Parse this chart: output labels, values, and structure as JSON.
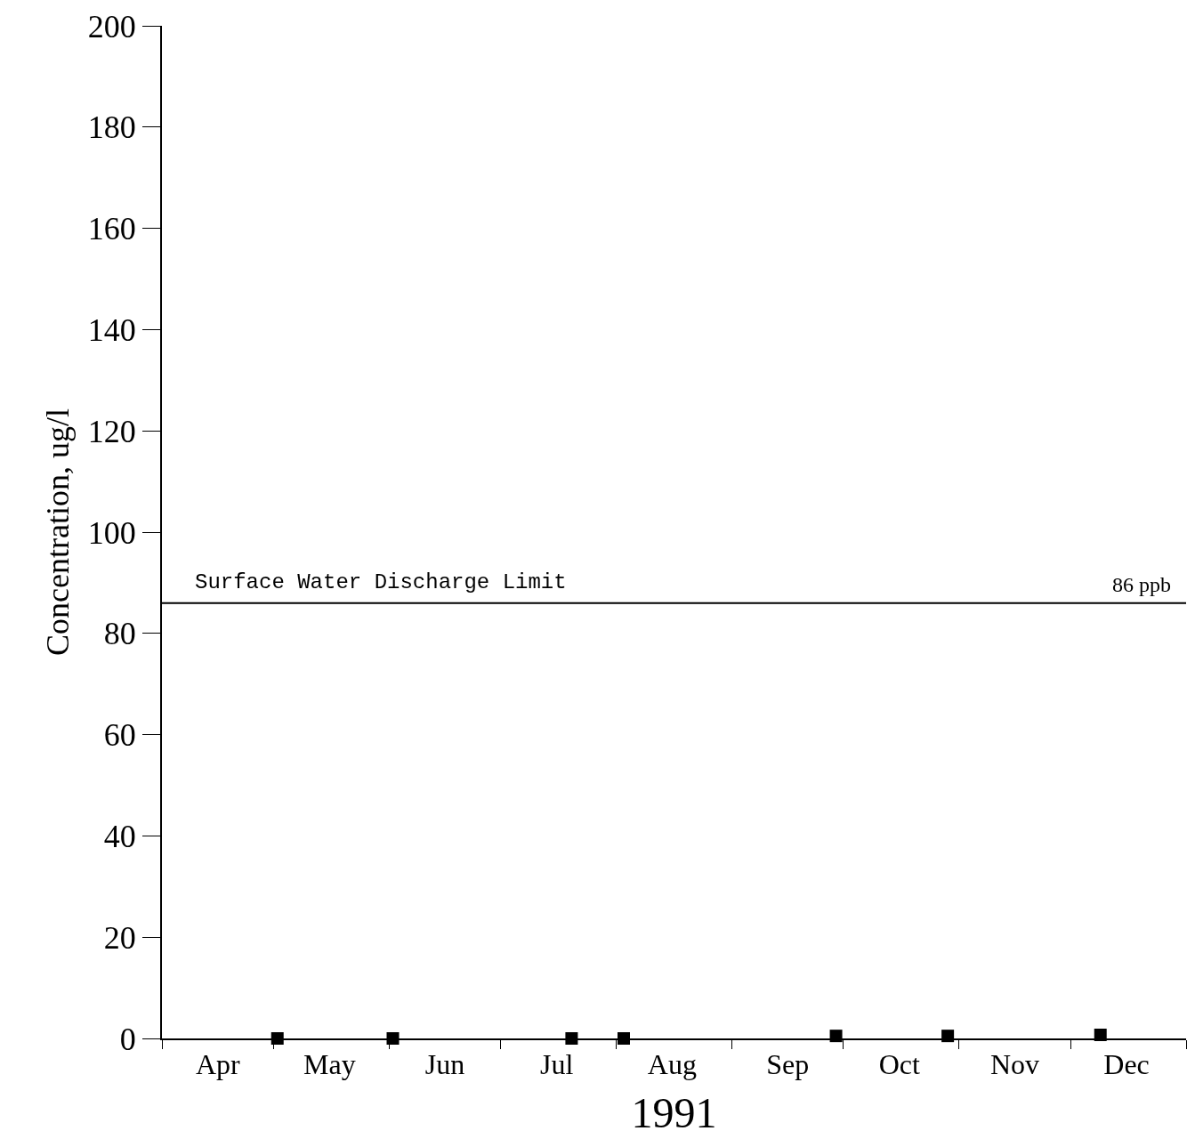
{
  "chart_data": {
    "type": "scatter",
    "xlabel": "1991",
    "ylabel": "Concentration, ug/l",
    "x": [
      "1991-05-02",
      "1991-06-02",
      "1991-07-20",
      "1991-08-03",
      "1991-09-29",
      "1991-10-29",
      "1991-12-09"
    ],
    "series": [
      {
        "color": "#000000",
        "values": [
          0,
          0,
          0,
          0,
          0.5,
          0.5,
          0.7
        ]
      }
    ],
    "marker": "square",
    "xlim": [
      "1991-04-01",
      "1992-01-01"
    ],
    "xticks": [
      {
        "value": "1991-04-01",
        "label": null
      },
      {
        "value": "1991-05-01",
        "label": null
      },
      {
        "value": "1991-06-01",
        "label": null
      },
      {
        "value": "1991-07-01",
        "label": null
      },
      {
        "value": "1991-08-01",
        "label": null
      },
      {
        "value": "1991-09-01",
        "label": null
      },
      {
        "value": "1991-10-01",
        "label": null
      },
      {
        "value": "1991-11-01",
        "label": null
      },
      {
        "value": "1991-12-01",
        "label": null
      },
      {
        "value": "1992-01-01",
        "label": null
      },
      {
        "value": "1991-04-16",
        "label": "Apr"
      },
      {
        "value": "1991-05-16",
        "label": "May"
      },
      {
        "value": "1991-06-16",
        "label": "Jun"
      },
      {
        "value": "1991-07-16",
        "label": "Jul"
      },
      {
        "value": "1991-08-16",
        "label": "Aug"
      },
      {
        "value": "1991-09-16",
        "label": "Sep"
      },
      {
        "value": "1991-10-16",
        "label": "Oct"
      },
      {
        "value": "1991-11-16",
        "label": "Nov"
      },
      {
        "value": "1991-12-16",
        "label": "Dec"
      }
    ],
    "ylim": [
      0,
      200
    ],
    "yticks": [
      0,
      20,
      40,
      60,
      80,
      100,
      120,
      140,
      160,
      180,
      200
    ],
    "ref_lines": [
      {
        "axis": "y",
        "value": 86,
        "label": "Surface Water Discharge Limit",
        "color": "#000000"
      }
    ],
    "annotations": [
      {
        "text": "86 ppb",
        "x": "1991-12-20",
        "y": 86
      }
    ]
  }
}
